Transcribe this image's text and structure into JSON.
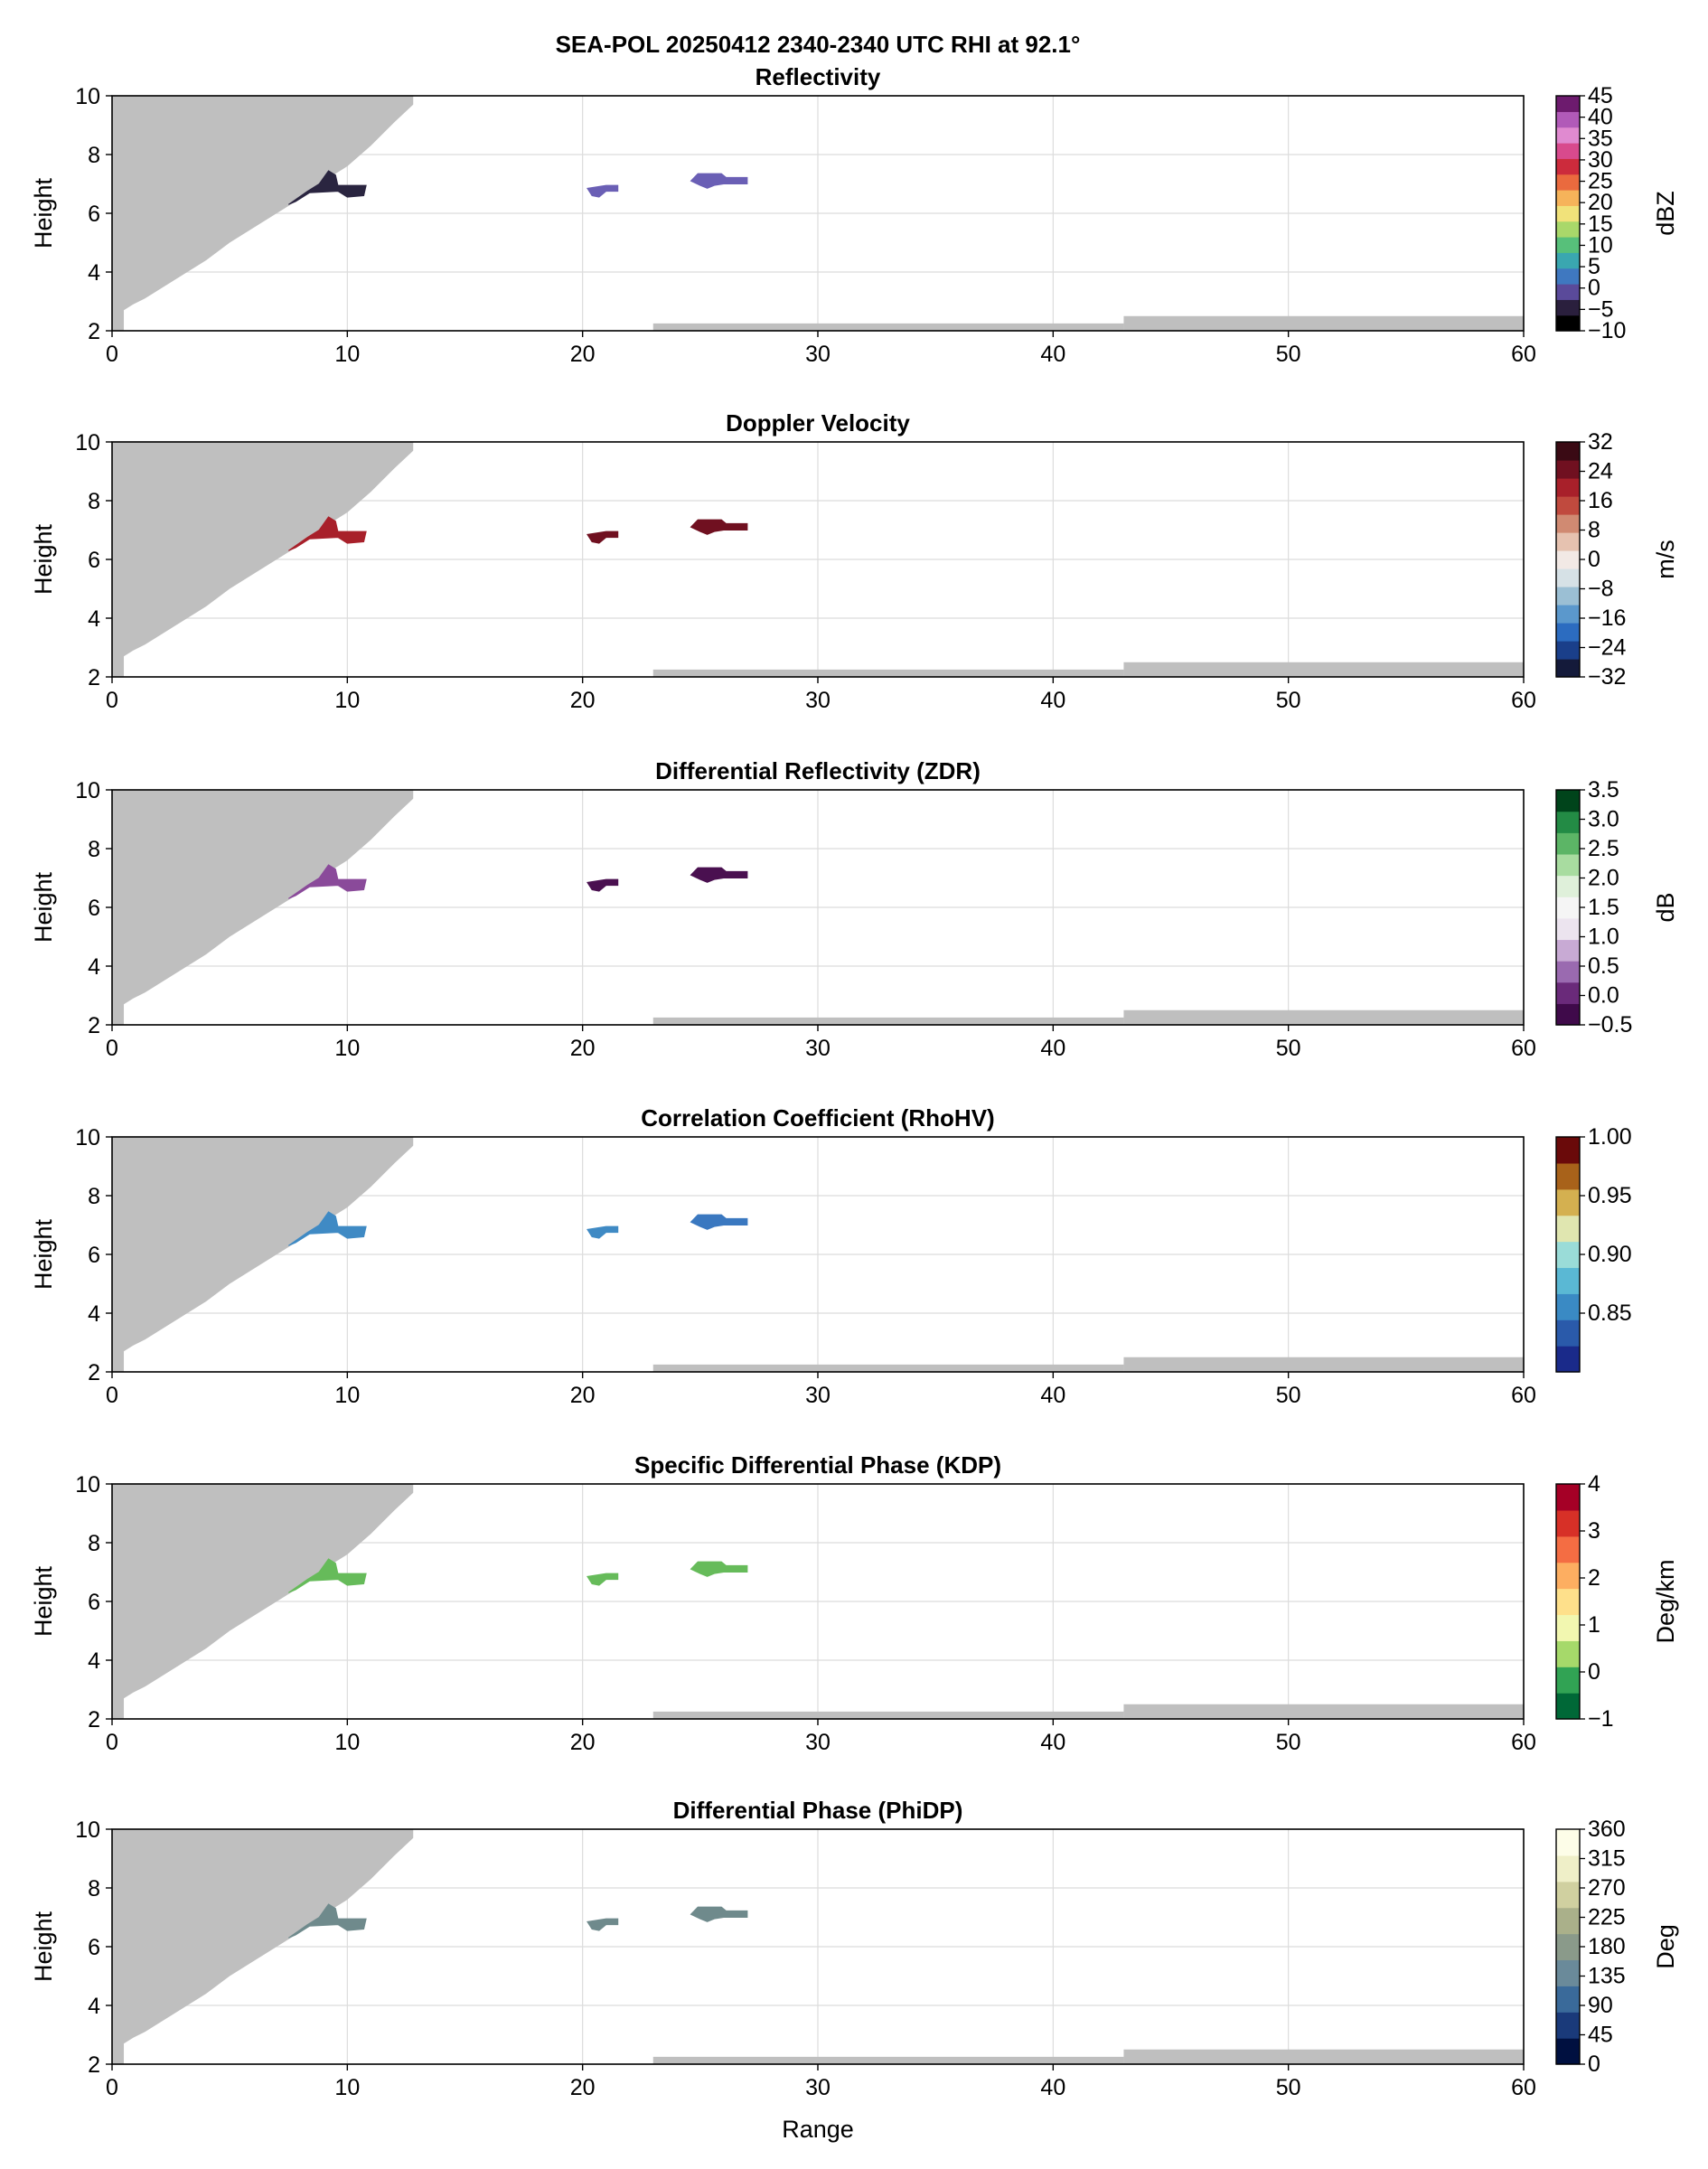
{
  "figure": {
    "title_line1": "SEA-POL 20250412 2340-2340 UTC RHI at 92.1°",
    "xlabel": "Range"
  },
  "chart_data": [
    {
      "type": "heatmap",
      "title": "Reflectivity",
      "ylabel": "Height",
      "colorbar_label": "dBZ",
      "xlim": [
        0,
        60
      ],
      "ylim": [
        2,
        10
      ],
      "x_ticks": [
        0,
        10,
        20,
        30,
        40,
        50,
        60
      ],
      "y_ticks": [
        2,
        4,
        6,
        8,
        10
      ],
      "grid": true,
      "color_range": [
        -10,
        45
      ],
      "colorbar_ticks": [
        -10,
        -5,
        0,
        5,
        10,
        15,
        20,
        25,
        30,
        35,
        40,
        45
      ],
      "colorbar_tick_labels": [
        "−10",
        "−5",
        "0",
        "5",
        "10",
        "15",
        "20",
        "25",
        "30",
        "35",
        "40",
        "45"
      ],
      "colormap": [
        "#000000",
        "#2a1f3d",
        "#5a4a9a",
        "#3f78c0",
        "#3aa7b0",
        "#57c07a",
        "#a9d86a",
        "#f1e27a",
        "#f6b35a",
        "#ea6a3e",
        "#cc2b3c",
        "#d84a8d",
        "#e08ad0",
        "#b15ab8",
        "#6d1b6e"
      ],
      "echo_colors": [
        "#2a2540",
        "#6a5fb5",
        "#6a5fb5"
      ],
      "echo_values": [
        -4,
        2,
        2
      ]
    },
    {
      "type": "heatmap",
      "title": "Doppler Velocity",
      "ylabel": "Height",
      "colorbar_label": "m/s",
      "xlim": [
        0,
        60
      ],
      "ylim": [
        2,
        10
      ],
      "x_ticks": [
        0,
        10,
        20,
        30,
        40,
        50,
        60
      ],
      "y_ticks": [
        2,
        4,
        6,
        8,
        10
      ],
      "grid": true,
      "color_range": [
        -32,
        32
      ],
      "colorbar_ticks": [
        -32,
        -24,
        -16,
        -8,
        0,
        8,
        16,
        24,
        32
      ],
      "colorbar_tick_labels": [
        "−32",
        "−24",
        "−16",
        "−8",
        "0",
        "8",
        "16",
        "24",
        "32"
      ],
      "colormap": [
        "#141a3a",
        "#1a3f8a",
        "#2c6cc0",
        "#5b98cc",
        "#9bbfd4",
        "#d6e1e6",
        "#f2e9e5",
        "#e6c2b0",
        "#d08a72",
        "#c04a3e",
        "#a8202a",
        "#701020",
        "#3a0a14"
      ],
      "echo_colors": [
        "#a8202a",
        "#701020",
        "#701020"
      ],
      "echo_values": [
        18,
        26,
        26
      ]
    },
    {
      "type": "heatmap",
      "title": "Differential Reflectivity (ZDR)",
      "ylabel": "Height",
      "colorbar_label": "dB",
      "xlim": [
        0,
        60
      ],
      "ylim": [
        2,
        10
      ],
      "x_ticks": [
        0,
        10,
        20,
        30,
        40,
        50,
        60
      ],
      "y_ticks": [
        2,
        4,
        6,
        8,
        10
      ],
      "grid": true,
      "color_range": [
        -0.5,
        3.5
      ],
      "colorbar_ticks": [
        -0.5,
        0.0,
        0.5,
        1.0,
        1.5,
        2.0,
        2.5,
        3.0,
        3.5
      ],
      "colorbar_tick_labels": [
        "−0.5",
        "0.0",
        "0.5",
        "1.0",
        "1.5",
        "2.0",
        "2.5",
        "3.0",
        "3.5"
      ],
      "colormap": [
        "#3f0a4a",
        "#6a2a7a",
        "#9a6ab0",
        "#c8aad4",
        "#ece4ef",
        "#f5f5f5",
        "#dff0da",
        "#a8dca0",
        "#5cb566",
        "#238b45",
        "#00441b"
      ],
      "echo_colors": [
        "#8a4a9a",
        "#4a1050",
        "#4a1050"
      ],
      "echo_values": [
        0.3,
        -0.3,
        -0.3
      ]
    },
    {
      "type": "heatmap",
      "title": "Correlation Coefficient (RhoHV)",
      "ylabel": "Height",
      "colorbar_label": "",
      "xlim": [
        0,
        60
      ],
      "ylim": [
        2,
        10
      ],
      "x_ticks": [
        0,
        10,
        20,
        30,
        40,
        50,
        60
      ],
      "y_ticks": [
        2,
        4,
        6,
        8,
        10
      ],
      "grid": true,
      "color_range": [
        0.8,
        1.0
      ],
      "colorbar_ticks": [
        0.85,
        0.9,
        0.95,
        1.0
      ],
      "colorbar_tick_labels": [
        "0.85",
        "0.90",
        "0.95",
        "1.00"
      ],
      "colormap": [
        "#1a2a8a",
        "#2a5aaa",
        "#3a8ac4",
        "#5ab8d4",
        "#9adcd8",
        "#e0e6b0",
        "#d4b050",
        "#a8621a",
        "#6a0a0a"
      ],
      "echo_colors": [
        "#3f8ac4",
        "#3f8ac4",
        "#3a78c0"
      ],
      "echo_values": [
        0.89,
        0.89,
        0.88
      ]
    },
    {
      "type": "heatmap",
      "title": "Specific Differential Phase (KDP)",
      "ylabel": "Height",
      "colorbar_label": "Deg/km",
      "xlim": [
        0,
        60
      ],
      "ylim": [
        2,
        10
      ],
      "x_ticks": [
        0,
        10,
        20,
        30,
        40,
        50,
        60
      ],
      "y_ticks": [
        2,
        4,
        6,
        8,
        10
      ],
      "grid": true,
      "color_range": [
        -1,
        4
      ],
      "colorbar_ticks": [
        -1,
        0,
        1,
        2,
        3,
        4
      ],
      "colorbar_tick_labels": [
        "−1",
        "0",
        "1",
        "2",
        "3",
        "4"
      ],
      "colormap": [
        "#006837",
        "#31a354",
        "#a6d96a",
        "#f2f7b0",
        "#fee08b",
        "#fdae61",
        "#f46d43",
        "#d73027",
        "#a50026"
      ],
      "echo_colors": [
        "#66bb5a",
        "#66bb5a",
        "#66bb5a"
      ],
      "echo_values": [
        0.1,
        0.1,
        0.1
      ]
    },
    {
      "type": "heatmap",
      "title": "Differential Phase (PhiDP)",
      "ylabel": "Height",
      "colorbar_label": "Deg",
      "xlim": [
        0,
        60
      ],
      "ylim": [
        2,
        10
      ],
      "x_ticks": [
        0,
        10,
        20,
        30,
        40,
        50,
        60
      ],
      "y_ticks": [
        2,
        4,
        6,
        8,
        10
      ],
      "grid": true,
      "color_range": [
        0,
        360
      ],
      "colorbar_ticks": [
        0,
        45,
        90,
        135,
        180,
        225,
        270,
        315,
        360
      ],
      "colorbar_tick_labels": [
        "0",
        "45",
        "90",
        "135",
        "180",
        "225",
        "270",
        "315",
        "360"
      ],
      "colormap": [
        "#001040",
        "#1a3a7a",
        "#3a6a9a",
        "#6a8a9a",
        "#8a9a8a",
        "#aab08a",
        "#d0d0a0",
        "#efefc8",
        "#fdfde8"
      ],
      "echo_colors": [
        "#6f8a8c",
        "#6f8a8c",
        "#6f8a8c"
      ],
      "echo_values": [
        165,
        165,
        165
      ]
    }
  ],
  "echo_regions": [
    {
      "name": "echo-near",
      "polygon": [
        [
          7.5,
          6.3
        ],
        [
          8.3,
          6.75
        ],
        [
          8.8,
          7.0
        ],
        [
          9.2,
          7.45
        ],
        [
          9.5,
          7.3
        ],
        [
          9.6,
          6.95
        ],
        [
          10.8,
          6.95
        ],
        [
          10.7,
          6.6
        ],
        [
          10.0,
          6.55
        ],
        [
          9.6,
          6.75
        ],
        [
          8.4,
          6.7
        ],
        [
          7.8,
          6.4
        ]
      ]
    },
    {
      "name": "echo-mid",
      "polygon": [
        [
          20.2,
          6.85
        ],
        [
          21.0,
          6.95
        ],
        [
          21.5,
          6.95
        ],
        [
          21.5,
          6.75
        ],
        [
          21.0,
          6.75
        ],
        [
          20.7,
          6.55
        ],
        [
          20.4,
          6.6
        ]
      ]
    },
    {
      "name": "echo-far",
      "polygon": [
        [
          24.6,
          7.1
        ],
        [
          24.9,
          7.35
        ],
        [
          25.9,
          7.35
        ],
        [
          26.1,
          7.22
        ],
        [
          27.0,
          7.22
        ],
        [
          27.0,
          7.0
        ],
        [
          26.0,
          7.0
        ],
        [
          25.6,
          6.95
        ],
        [
          25.3,
          6.85
        ],
        [
          25.0,
          6.95
        ]
      ]
    }
  ],
  "blocked_sector": {
    "upper_boundary": [
      [
        0.0,
        2.0
      ],
      [
        0.5,
        2.0
      ],
      [
        0.5,
        2.7
      ],
      [
        0.9,
        2.9
      ],
      [
        1.4,
        3.1
      ],
      [
        2.0,
        3.4
      ],
      [
        3.0,
        3.9
      ],
      [
        4.0,
        4.4
      ],
      [
        5.0,
        5.0
      ],
      [
        6.0,
        5.5
      ],
      [
        7.0,
        6.0
      ],
      [
        8.0,
        6.5
      ],
      [
        9.0,
        7.1
      ],
      [
        10.0,
        7.6
      ],
      [
        11.0,
        8.3
      ],
      [
        12.0,
        9.1
      ],
      [
        12.8,
        9.7
      ],
      [
        12.8,
        10.0
      ],
      [
        0.0,
        10.0
      ]
    ],
    "ground_strips": [
      {
        "x0": 23.0,
        "x1": 43.0,
        "y_top": 2.25
      },
      {
        "x0": 43.0,
        "x1": 60.0,
        "y_top": 2.5
      }
    ]
  }
}
